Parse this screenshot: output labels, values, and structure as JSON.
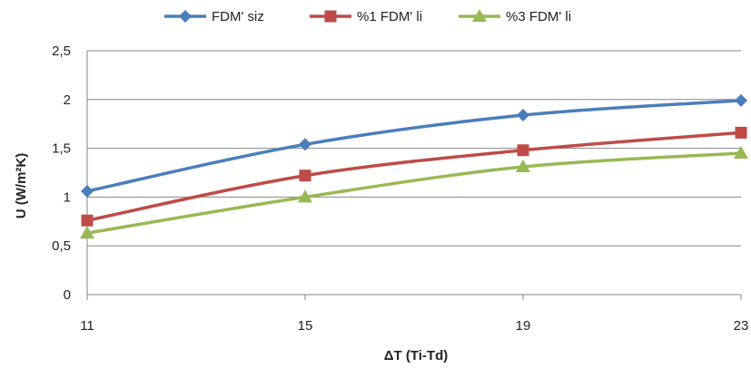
{
  "chart_data": {
    "type": "line",
    "x": [
      "11",
      "15",
      "19",
      "23"
    ],
    "series": [
      {
        "name": "FDM' siz",
        "values": [
          1.06,
          1.54,
          1.84,
          1.99
        ],
        "color": "#4a7ebb",
        "marker": "diamond"
      },
      {
        "name": "%1 FDM' li",
        "values": [
          0.76,
          1.22,
          1.48,
          1.66
        ],
        "color": "#be4b48",
        "marker": "square"
      },
      {
        "name": "%3 FDM' li",
        "values": [
          0.63,
          1.0,
          1.31,
          1.45
        ],
        "color": "#98b954",
        "marker": "triangle"
      }
    ],
    "xlabel": "ΔT (Ti-Td)",
    "ylabel": "U (W/m²K)",
    "ylim": [
      0,
      2.5
    ],
    "yticks": [
      "0",
      "0,5",
      "1",
      "1,5",
      "2",
      "2,5"
    ],
    "grid": true,
    "legend": "top"
  }
}
